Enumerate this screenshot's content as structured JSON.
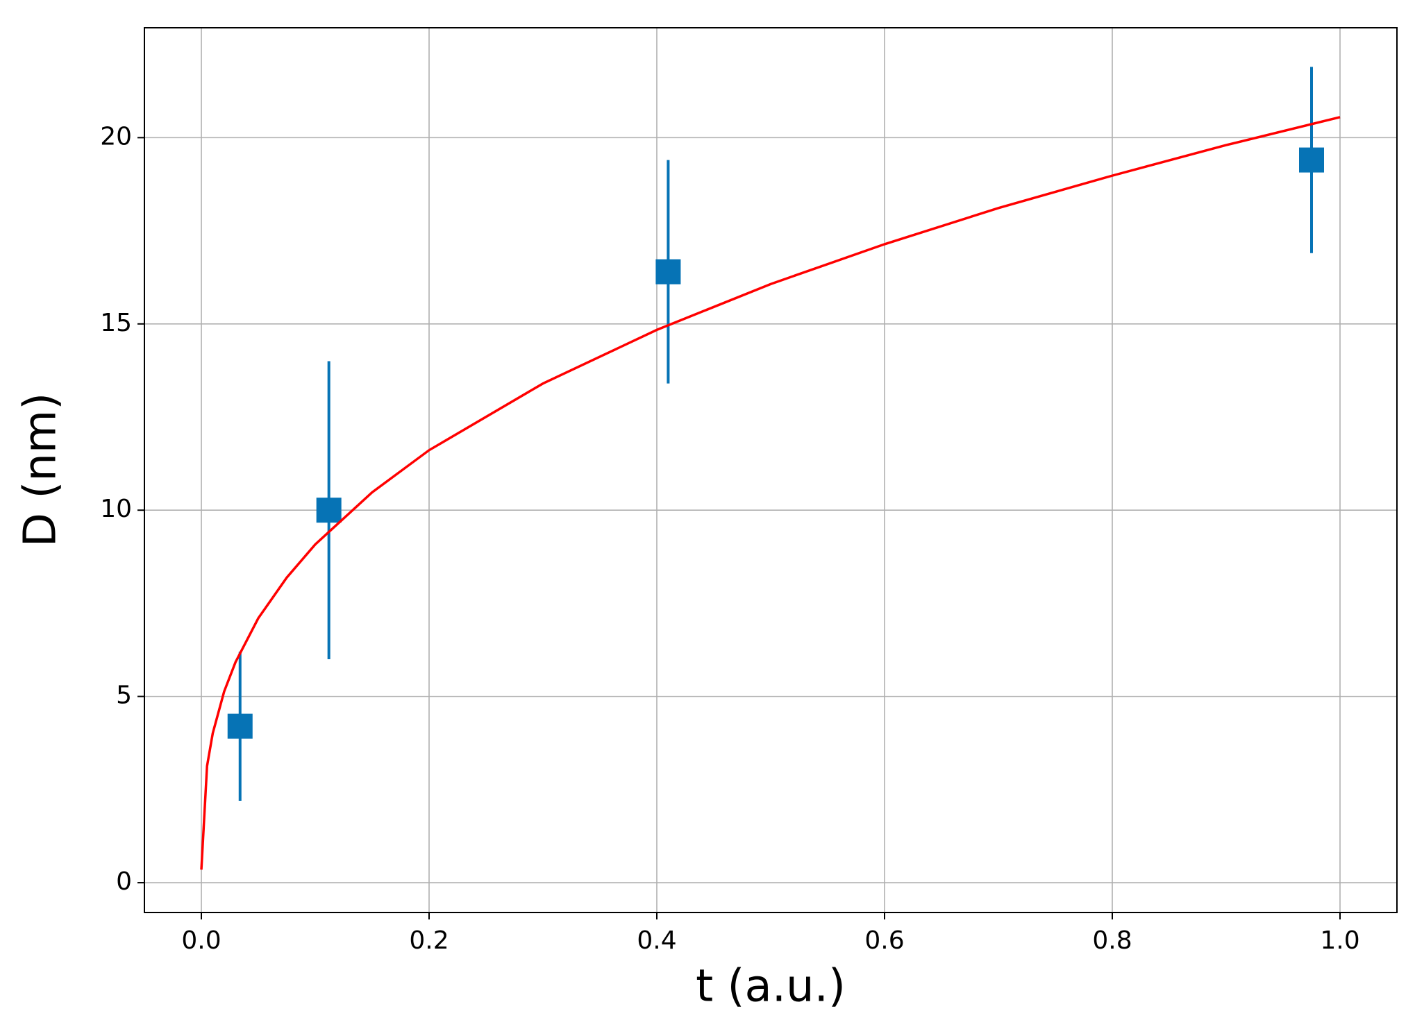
{
  "chart_data": {
    "type": "scatter",
    "xlabel": "t (a.u.)",
    "ylabel": "D (nm)",
    "xlim": [
      -0.05,
      1.05
    ],
    "ylim": [
      -0.8,
      22.95
    ],
    "xticks": [
      {
        "value": 0,
        "label": "0.0"
      },
      0.2,
      0.4,
      0.6,
      0.8,
      {
        "value": 1,
        "label": "1.0"
      }
    ],
    "yticks": [
      0,
      5,
      10,
      15,
      20
    ],
    "grid": true,
    "series": [
      {
        "type": "errorbar",
        "marker": "square",
        "color": "#0673b5",
        "x": [
          0.034,
          0.112,
          0.41,
          0.975
        ],
        "values": [
          4.2,
          10.0,
          16.4,
          19.4
        ],
        "errors": [
          2.0,
          4.0,
          3.0,
          2.5
        ]
      },
      {
        "type": "line",
        "color": "#ff0000",
        "x": [
          1e-05,
          0.005,
          0.01,
          0.02,
          0.03,
          0.05,
          0.075,
          0.1,
          0.15,
          0.2,
          0.3,
          0.4,
          0.5,
          0.6,
          0.7,
          0.8,
          0.9,
          1.0
        ],
        "values": [
          0.35,
          3.13,
          4.01,
          5.13,
          5.92,
          7.1,
          8.19,
          9.08,
          10.48,
          11.61,
          13.4,
          14.84,
          16.07,
          17.14,
          18.11,
          18.98,
          19.8,
          20.55
        ]
      }
    ]
  }
}
